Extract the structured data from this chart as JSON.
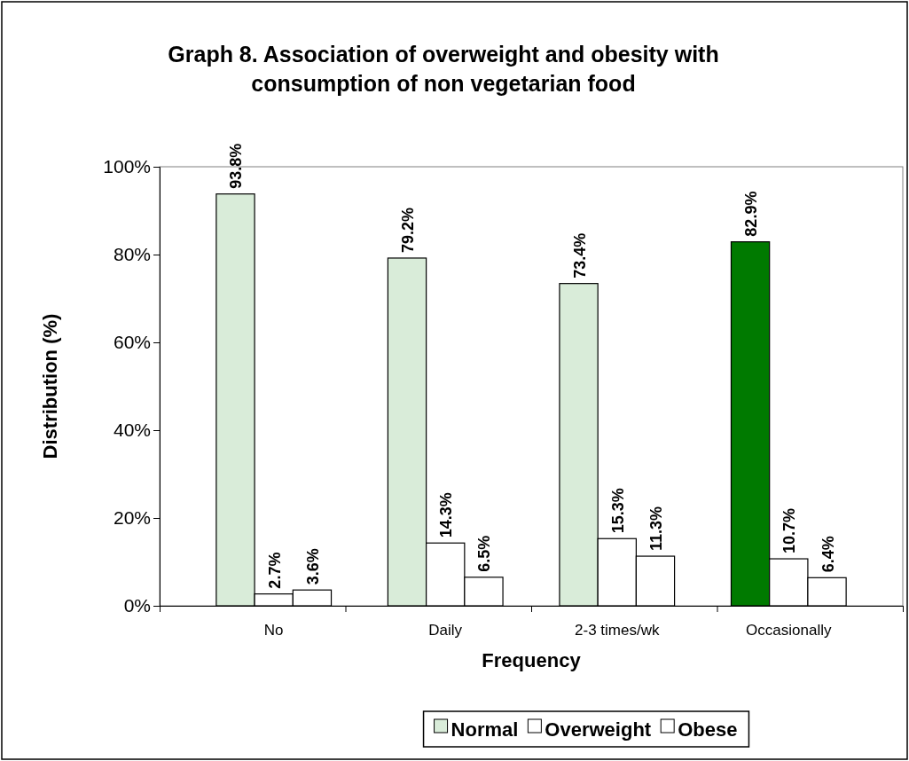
{
  "chart_data": {
    "type": "bar",
    "title": "Graph 8. Association of overweight and obesity with consumption of non vegetarian food",
    "xlabel": "Frequency",
    "ylabel": "Distribution (%)",
    "categories": [
      "No",
      "Daily",
      "2-3 times/wk",
      "Occasionally"
    ],
    "series": [
      {
        "name": "Normal",
        "color": "#d9ecd9",
        "colors": [
          "#d9ecd9",
          "#d9ecd9",
          "#d9ecd9",
          "#007a00"
        ],
        "values": [
          93.8,
          79.2,
          73.4,
          82.9
        ],
        "value_labels": [
          "93.8%",
          "79.2%",
          "73.4%",
          "82.9%"
        ]
      },
      {
        "name": "Overweight",
        "color": "#ffffff",
        "values": [
          2.7,
          14.3,
          15.3,
          10.7
        ],
        "value_labels": [
          "2.7%",
          "14.3%",
          "15.3%",
          "10.7%"
        ]
      },
      {
        "name": "Obese",
        "color": "#ffffff",
        "values": [
          3.6,
          6.5,
          11.3,
          6.4
        ],
        "value_labels": [
          "3.6%",
          "6.5%",
          "11.3%",
          "6.4%"
        ]
      }
    ],
    "ylim": [
      0,
      100
    ],
    "yticks": [
      {
        "value": 0,
        "label": "0%"
      },
      {
        "value": 20,
        "label": "20%"
      },
      {
        "value": 40,
        "label": "40%"
      },
      {
        "value": 60,
        "label": "60%"
      },
      {
        "value": 80,
        "label": "80%"
      },
      {
        "value": 100,
        "label": "100%"
      }
    ],
    "grid": false,
    "legend": "bottom"
  }
}
